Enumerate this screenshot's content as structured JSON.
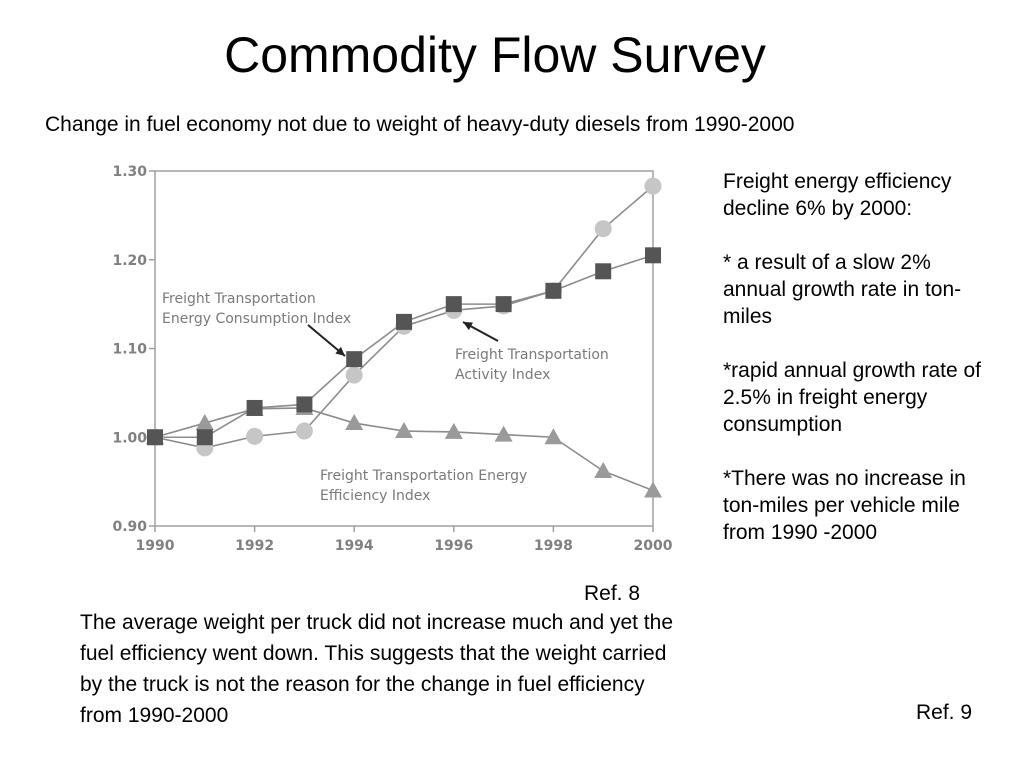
{
  "slide": {
    "title": "Commodity Flow Survey",
    "subtitle": "Change in fuel economy not due to weight of heavy-duty diesels from 1990-2000",
    "ref_left": "Ref. 8",
    "ref_right": "Ref. 9",
    "note": "The average weight per truck did not increase much and yet the fuel efficiency went down. This suggests that the weight carried by the truck is not the reason for the change in fuel efficiency from 1990-2000",
    "bullets": [
      "Freight energy efficiency decline 6% by 2000:",
      "* a result of a slow 2% annual growth rate in ton-miles",
      "*rapid annual growth rate of 2.5% in freight energy consumption",
      "*There was no increase in ton-miles per vehicle mile from 1990 -2000"
    ]
  },
  "chart_data": {
    "type": "line",
    "x": [
      1990,
      1991,
      1992,
      1993,
      1994,
      1995,
      1996,
      1997,
      1998,
      1999,
      2000
    ],
    "xticks": [
      "1990",
      "1992",
      "1994",
      "1996",
      "1998",
      "2000"
    ],
    "yticks": [
      "0.90",
      "1.00",
      "1.10",
      "1.20",
      "1.30"
    ],
    "ylim": [
      0.9,
      1.3
    ],
    "xlim": [
      1990,
      2000
    ],
    "series": [
      {
        "name": "Freight Transportation Energy Consumption Index",
        "marker": "square",
        "color": "#555555",
        "values": [
          1.0,
          1.0,
          1.033,
          1.037,
          1.088,
          1.13,
          1.15,
          1.15,
          1.165,
          1.187,
          1.205
        ]
      },
      {
        "name": "Freight Transportation Activity Index",
        "marker": "circle",
        "color": "#c6c6c6",
        "values": [
          1.0,
          0.988,
          1.001,
          1.007,
          1.07,
          1.125,
          1.143,
          1.148,
          1.165,
          1.235,
          1.283
        ]
      },
      {
        "name": "Freight Transportation Energy Efficiency Index",
        "marker": "triangle",
        "color": "#9a9a9a",
        "values": [
          1.0,
          1.016,
          1.032,
          1.033,
          1.016,
          1.007,
          1.006,
          1.003,
          1.0,
          0.962,
          0.94
        ]
      }
    ],
    "annotations": [
      [
        "Freight Transportation",
        "Energy Consumption Index"
      ],
      [
        "Freight Transportation",
        "Activity Index"
      ],
      [
        "Freight Transportation Energy",
        "Efficiency Index"
      ]
    ],
    "grid": false
  }
}
